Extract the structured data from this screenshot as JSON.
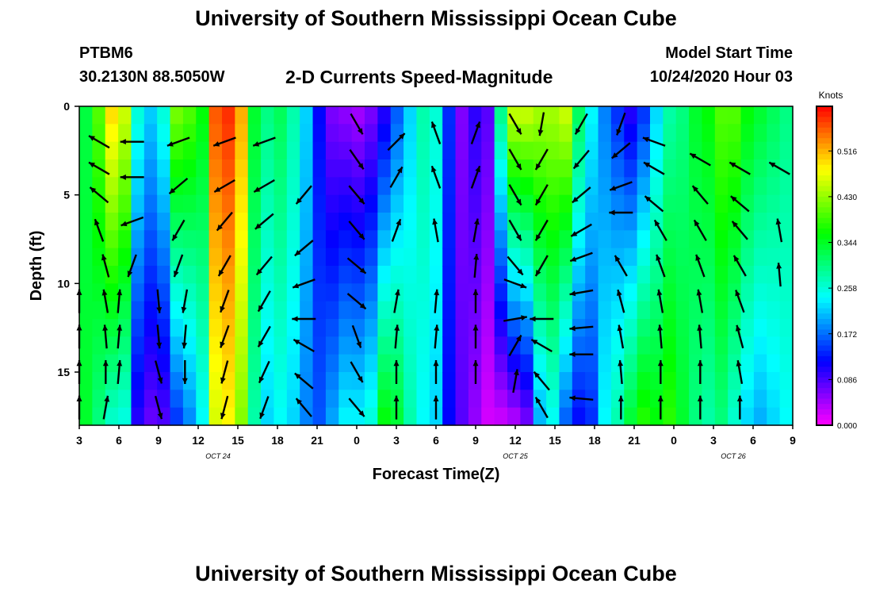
{
  "header": {
    "title": "University of Southern Mississippi Ocean Cube",
    "station_id": "PTBM6",
    "coordinates": "30.2130N 88.5050W",
    "subtitle": "2-D Currents Speed-Magnitude",
    "model_start_label": "Model Start Time",
    "model_start_value": "10/24/2020 Hour 03"
  },
  "footer": {
    "title": "University of Southern Mississippi Ocean Cube"
  },
  "chart_data": {
    "type": "heatmap",
    "xlabel": "Forecast Time(Z)",
    "ylabel": "Depth (ft)",
    "ylim": [
      0,
      18
    ],
    "y_ticks": [
      0,
      5,
      10,
      15
    ],
    "x_hours_range": [
      3,
      57
    ],
    "x_tick_hours": [
      3,
      6,
      9,
      12,
      15,
      18,
      21,
      24,
      27,
      30,
      33,
      36,
      39,
      42,
      45,
      48,
      51,
      54,
      57
    ],
    "x_tick_labels": [
      "3",
      "6",
      "9",
      "12",
      "15",
      "18",
      "21",
      "0",
      "3",
      "6",
      "9",
      "12",
      "15",
      "18",
      "21",
      "0",
      "3",
      "6",
      "9"
    ],
    "date_labels": [
      {
        "hour": 13.5,
        "text": "OCT 24"
      },
      {
        "hour": 36,
        "text": "OCT 25"
      },
      {
        "hour": 52.5,
        "text": "OCT 26"
      }
    ],
    "colorbar": {
      "units": "Knots",
      "min": 0.0,
      "max": 0.6,
      "ticks": [
        "0.000",
        "0.086",
        "0.172",
        "0.258",
        "0.344",
        "0.430",
        "0.516"
      ]
    },
    "speed_profile_by_hour": [
      {
        "hour": 3,
        "top": 0.33,
        "bottom": 0.34
      },
      {
        "hour": 4,
        "top": 0.4,
        "bottom": 0.3
      },
      {
        "hour": 5,
        "top": 0.5,
        "bottom": 0.26
      },
      {
        "hour": 6,
        "top": 0.46,
        "bottom": 0.25
      },
      {
        "hour": 7,
        "top": 0.26,
        "bottom": 0.1
      },
      {
        "hour": 8,
        "top": 0.22,
        "bottom": 0.07
      },
      {
        "hour": 9,
        "top": 0.26,
        "bottom": 0.08
      },
      {
        "hour": 10,
        "top": 0.42,
        "bottom": 0.14
      },
      {
        "hour": 11,
        "top": 0.4,
        "bottom": 0.18
      },
      {
        "hour": 12,
        "top": 0.36,
        "bottom": 0.24
      },
      {
        "hour": 13,
        "top": 0.56,
        "bottom": 0.46
      },
      {
        "hour": 14,
        "top": 0.58,
        "bottom": 0.48
      },
      {
        "hour": 15,
        "top": 0.52,
        "bottom": 0.42
      },
      {
        "hour": 16,
        "top": 0.34,
        "bottom": 0.28
      },
      {
        "hour": 17,
        "top": 0.3,
        "bottom": 0.22
      },
      {
        "hour": 18,
        "top": 0.32,
        "bottom": 0.24
      },
      {
        "hour": 19,
        "top": 0.28,
        "bottom": 0.22
      },
      {
        "hour": 20,
        "top": 0.22,
        "bottom": 0.18
      },
      {
        "hour": 21,
        "top": 0.12,
        "bottom": 0.16
      },
      {
        "hour": 22,
        "top": 0.06,
        "bottom": 0.2
      },
      {
        "hour": 23,
        "top": 0.05,
        "bottom": 0.24
      },
      {
        "hour": 24,
        "top": 0.04,
        "bottom": 0.24
      },
      {
        "hour": 25,
        "top": 0.06,
        "bottom": 0.26
      },
      {
        "hour": 26,
        "top": 0.1,
        "bottom": 0.36
      },
      {
        "hour": 27,
        "top": 0.16,
        "bottom": 0.34
      },
      {
        "hour": 28,
        "top": 0.22,
        "bottom": 0.28
      },
      {
        "hour": 29,
        "top": 0.28,
        "bottom": 0.24
      },
      {
        "hour": 30,
        "top": 0.26,
        "bottom": 0.22
      },
      {
        "hour": 31,
        "top": 0.14,
        "bottom": 0.12
      },
      {
        "hour": 32,
        "top": 0.06,
        "bottom": 0.08
      },
      {
        "hour": 33,
        "top": 0.1,
        "bottom": 0.05
      },
      {
        "hour": 34,
        "top": 0.08,
        "bottom": 0.02
      },
      {
        "hour": 35,
        "top": 0.3,
        "bottom": 0.02
      },
      {
        "hour": 36,
        "top": 0.46,
        "bottom": 0.03
      },
      {
        "hour": 37,
        "top": 0.46,
        "bottom": 0.06
      },
      {
        "hour": 38,
        "top": 0.44,
        "bottom": 0.2
      },
      {
        "hour": 39,
        "top": 0.44,
        "bottom": 0.24
      },
      {
        "hour": 40,
        "top": 0.46,
        "bottom": 0.16
      },
      {
        "hour": 41,
        "top": 0.32,
        "bottom": 0.12
      },
      {
        "hour": 42,
        "top": 0.24,
        "bottom": 0.14
      },
      {
        "hour": 43,
        "top": 0.18,
        "bottom": 0.24
      },
      {
        "hour": 44,
        "top": 0.14,
        "bottom": 0.28
      },
      {
        "hour": 45,
        "top": 0.1,
        "bottom": 0.34
      },
      {
        "hour": 46,
        "top": 0.14,
        "bottom": 0.38
      },
      {
        "hour": 47,
        "top": 0.22,
        "bottom": 0.36
      },
      {
        "hour": 48,
        "top": 0.28,
        "bottom": 0.38
      },
      {
        "hour": 49,
        "top": 0.3,
        "bottom": 0.34
      },
      {
        "hour": 50,
        "top": 0.34,
        "bottom": 0.3
      },
      {
        "hour": 51,
        "top": 0.36,
        "bottom": 0.28
      },
      {
        "hour": 52,
        "top": 0.4,
        "bottom": 0.3
      },
      {
        "hour": 53,
        "top": 0.4,
        "bottom": 0.26
      },
      {
        "hour": 54,
        "top": 0.36,
        "bottom": 0.22
      },
      {
        "hour": 55,
        "top": 0.34,
        "bottom": 0.2
      },
      {
        "hour": 56,
        "top": 0.32,
        "bottom": 0.22
      },
      {
        "hour": 57,
        "top": 0.3,
        "bottom": 0.24
      }
    ],
    "vectors": [
      {
        "hour": 3,
        "depth": 11,
        "dir": 0
      },
      {
        "hour": 3,
        "depth": 13,
        "dir": 0
      },
      {
        "hour": 3,
        "depth": 15,
        "dir": 0
      },
      {
        "hour": 3,
        "depth": 17,
        "dir": 0
      },
      {
        "hour": 4.5,
        "depth": 2,
        "dir": 300
      },
      {
        "hour": 4.5,
        "depth": 3.5,
        "dir": 300
      },
      {
        "hour": 4.5,
        "depth": 5,
        "dir": 310
      },
      {
        "hour": 4.5,
        "depth": 7,
        "dir": 340
      },
      {
        "hour": 5,
        "depth": 9,
        "dir": 345
      },
      {
        "hour": 5,
        "depth": 11,
        "dir": 350
      },
      {
        "hour": 5,
        "depth": 13,
        "dir": 355
      },
      {
        "hour": 5,
        "depth": 15,
        "dir": 0
      },
      {
        "hour": 5,
        "depth": 17,
        "dir": 10
      },
      {
        "hour": 7,
        "depth": 2,
        "dir": 270
      },
      {
        "hour": 7,
        "depth": 4,
        "dir": 270
      },
      {
        "hour": 7,
        "depth": 6.5,
        "dir": 250
      },
      {
        "hour": 7,
        "depth": 9,
        "dir": 200
      },
      {
        "hour": 6,
        "depth": 11,
        "dir": 5
      },
      {
        "hour": 6,
        "depth": 13,
        "dir": 5
      },
      {
        "hour": 6,
        "depth": 15,
        "dir": 5
      },
      {
        "hour": 9,
        "depth": 11,
        "dir": 175
      },
      {
        "hour": 9,
        "depth": 13,
        "dir": 175
      },
      {
        "hour": 9,
        "depth": 15,
        "dir": 165
      },
      {
        "hour": 9,
        "depth": 17,
        "dir": 165
      },
      {
        "hour": 10.5,
        "depth": 2,
        "dir": 250
      },
      {
        "hour": 10.5,
        "depth": 4.5,
        "dir": 230
      },
      {
        "hour": 10.5,
        "depth": 7,
        "dir": 210
      },
      {
        "hour": 10.5,
        "depth": 9,
        "dir": 200
      },
      {
        "hour": 11,
        "depth": 11,
        "dir": 190
      },
      {
        "hour": 11,
        "depth": 13,
        "dir": 185
      },
      {
        "hour": 11,
        "depth": 15,
        "dir": 180
      },
      {
        "hour": 14,
        "depth": 2,
        "dir": 250
      },
      {
        "hour": 14,
        "depth": 4.5,
        "dir": 240
      },
      {
        "hour": 14,
        "depth": 6.5,
        "dir": 220
      },
      {
        "hour": 14,
        "depth": 9,
        "dir": 210
      },
      {
        "hour": 14,
        "depth": 11,
        "dir": 200
      },
      {
        "hour": 14,
        "depth": 13,
        "dir": 200
      },
      {
        "hour": 14,
        "depth": 15,
        "dir": 195
      },
      {
        "hour": 14,
        "depth": 17,
        "dir": 195
      },
      {
        "hour": 17,
        "depth": 2,
        "dir": 250
      },
      {
        "hour": 17,
        "depth": 4.5,
        "dir": 240
      },
      {
        "hour": 17,
        "depth": 6.5,
        "dir": 230
      },
      {
        "hour": 17,
        "depth": 9,
        "dir": 220
      },
      {
        "hour": 17,
        "depth": 11,
        "dir": 210
      },
      {
        "hour": 17,
        "depth": 13,
        "dir": 210
      },
      {
        "hour": 17,
        "depth": 15,
        "dir": 205
      },
      {
        "hour": 17,
        "depth": 17,
        "dir": 200
      },
      {
        "hour": 20,
        "depth": 5,
        "dir": 220
      },
      {
        "hour": 20,
        "depth": 8,
        "dir": 230
      },
      {
        "hour": 20,
        "depth": 10,
        "dir": 250
      },
      {
        "hour": 20,
        "depth": 12,
        "dir": 270
      },
      {
        "hour": 20,
        "depth": 13.5,
        "dir": 300
      },
      {
        "hour": 20,
        "depth": 15.5,
        "dir": 310
      },
      {
        "hour": 20,
        "depth": 17,
        "dir": 320
      },
      {
        "hour": 24,
        "depth": 1,
        "dir": 150
      },
      {
        "hour": 24,
        "depth": 3,
        "dir": 145
      },
      {
        "hour": 24,
        "depth": 5,
        "dir": 140
      },
      {
        "hour": 24,
        "depth": 7,
        "dir": 140
      },
      {
        "hour": 24,
        "depth": 9,
        "dir": 130
      },
      {
        "hour": 24,
        "depth": 11,
        "dir": 130
      },
      {
        "hour": 24,
        "depth": 13,
        "dir": 160
      },
      {
        "hour": 24,
        "depth": 15,
        "dir": 150
      },
      {
        "hour": 24,
        "depth": 17,
        "dir": 140
      },
      {
        "hour": 27,
        "depth": 2,
        "dir": 45
      },
      {
        "hour": 27,
        "depth": 4,
        "dir": 30
      },
      {
        "hour": 27,
        "depth": 7,
        "dir": 20
      },
      {
        "hour": 27,
        "depth": 11,
        "dir": 10
      },
      {
        "hour": 27,
        "depth": 13,
        "dir": 5
      },
      {
        "hour": 27,
        "depth": 15,
        "dir": 0
      },
      {
        "hour": 27,
        "depth": 17,
        "dir": 0
      },
      {
        "hour": 30,
        "depth": 1.5,
        "dir": 340
      },
      {
        "hour": 30,
        "depth": 4,
        "dir": 340
      },
      {
        "hour": 30,
        "depth": 7,
        "dir": 350
      },
      {
        "hour": 30,
        "depth": 11,
        "dir": 5
      },
      {
        "hour": 30,
        "depth": 13,
        "dir": 5
      },
      {
        "hour": 30,
        "depth": 15,
        "dir": 0
      },
      {
        "hour": 30,
        "depth": 17,
        "dir": 0
      },
      {
        "hour": 33,
        "depth": 1.5,
        "dir": 20
      },
      {
        "hour": 33,
        "depth": 4,
        "dir": 20
      },
      {
        "hour": 33,
        "depth": 7,
        "dir": 10
      },
      {
        "hour": 33,
        "depth": 9,
        "dir": 5
      },
      {
        "hour": 33,
        "depth": 11,
        "dir": 0
      },
      {
        "hour": 33,
        "depth": 13,
        "dir": 0
      },
      {
        "hour": 33,
        "depth": 15,
        "dir": 0
      },
      {
        "hour": 36,
        "depth": 1,
        "dir": 150
      },
      {
        "hour": 36,
        "depth": 3,
        "dir": 150
      },
      {
        "hour": 36,
        "depth": 5,
        "dir": 150
      },
      {
        "hour": 36,
        "depth": 7,
        "dir": 150
      },
      {
        "hour": 36,
        "depth": 9,
        "dir": 140
      },
      {
        "hour": 36,
        "depth": 10,
        "dir": 110
      },
      {
        "hour": 36,
        "depth": 12,
        "dir": 80
      },
      {
        "hour": 36,
        "depth": 13.5,
        "dir": 30
      },
      {
        "hour": 36,
        "depth": 15.5,
        "dir": 10
      },
      {
        "hour": 38,
        "depth": 1,
        "dir": 190
      },
      {
        "hour": 38,
        "depth": 3,
        "dir": 210
      },
      {
        "hour": 38,
        "depth": 5,
        "dir": 210
      },
      {
        "hour": 38,
        "depth": 7,
        "dir": 210
      },
      {
        "hour": 38,
        "depth": 9,
        "dir": 210
      },
      {
        "hour": 38,
        "depth": 12,
        "dir": 270
      },
      {
        "hour": 38,
        "depth": 13.5,
        "dir": 300
      },
      {
        "hour": 38,
        "depth": 15.5,
        "dir": 320
      },
      {
        "hour": 38,
        "depth": 17,
        "dir": 330
      },
      {
        "hour": 41,
        "depth": 1,
        "dir": 210
      },
      {
        "hour": 41,
        "depth": 3,
        "dir": 220
      },
      {
        "hour": 41,
        "depth": 5,
        "dir": 230
      },
      {
        "hour": 41,
        "depth": 7,
        "dir": 240
      },
      {
        "hour": 41,
        "depth": 8.5,
        "dir": 250
      },
      {
        "hour": 41,
        "depth": 10.5,
        "dir": 260
      },
      {
        "hour": 41,
        "depth": 12.5,
        "dir": 265
      },
      {
        "hour": 41,
        "depth": 14,
        "dir": 270
      },
      {
        "hour": 41,
        "depth": 16.5,
        "dir": 275
      },
      {
        "hour": 44,
        "depth": 1,
        "dir": 200
      },
      {
        "hour": 44,
        "depth": 2.5,
        "dir": 230
      },
      {
        "hour": 44,
        "depth": 4.5,
        "dir": 250
      },
      {
        "hour": 44,
        "depth": 6,
        "dir": 270
      },
      {
        "hour": 44,
        "depth": 9,
        "dir": 330
      },
      {
        "hour": 44,
        "depth": 11,
        "dir": 345
      },
      {
        "hour": 44,
        "depth": 13,
        "dir": 350
      },
      {
        "hour": 44,
        "depth": 15,
        "dir": 355
      },
      {
        "hour": 44,
        "depth": 17,
        "dir": 0
      },
      {
        "hour": 46.5,
        "depth": 2,
        "dir": 290
      },
      {
        "hour": 46.5,
        "depth": 3.5,
        "dir": 300
      },
      {
        "hour": 46.5,
        "depth": 5.5,
        "dir": 310
      },
      {
        "hour": 47,
        "depth": 7,
        "dir": 330
      },
      {
        "hour": 47,
        "depth": 9,
        "dir": 340
      },
      {
        "hour": 47,
        "depth": 11,
        "dir": 350
      },
      {
        "hour": 47,
        "depth": 13,
        "dir": 355
      },
      {
        "hour": 47,
        "depth": 15,
        "dir": 0
      },
      {
        "hour": 47,
        "depth": 17,
        "dir": 0
      },
      {
        "hour": 50,
        "depth": 3,
        "dir": 300
      },
      {
        "hour": 50,
        "depth": 5,
        "dir": 320
      },
      {
        "hour": 50,
        "depth": 7,
        "dir": 330
      },
      {
        "hour": 50,
        "depth": 9,
        "dir": 340
      },
      {
        "hour": 50,
        "depth": 11,
        "dir": 350
      },
      {
        "hour": 50,
        "depth": 13,
        "dir": 355
      },
      {
        "hour": 50,
        "depth": 15,
        "dir": 0
      },
      {
        "hour": 50,
        "depth": 17,
        "dir": 0
      },
      {
        "hour": 53,
        "depth": 3.5,
        "dir": 300
      },
      {
        "hour": 53,
        "depth": 5.5,
        "dir": 310
      },
      {
        "hour": 53,
        "depth": 7,
        "dir": 320
      },
      {
        "hour": 53,
        "depth": 9,
        "dir": 330
      },
      {
        "hour": 53,
        "depth": 11,
        "dir": 340
      },
      {
        "hour": 53,
        "depth": 13,
        "dir": 345
      },
      {
        "hour": 53,
        "depth": 15,
        "dir": 350
      },
      {
        "hour": 53,
        "depth": 17,
        "dir": 0
      },
      {
        "hour": 56,
        "depth": 3.5,
        "dir": 300
      },
      {
        "hour": 56,
        "depth": 7,
        "dir": 350
      },
      {
        "hour": 56,
        "depth": 9.5,
        "dir": 355
      }
    ]
  }
}
